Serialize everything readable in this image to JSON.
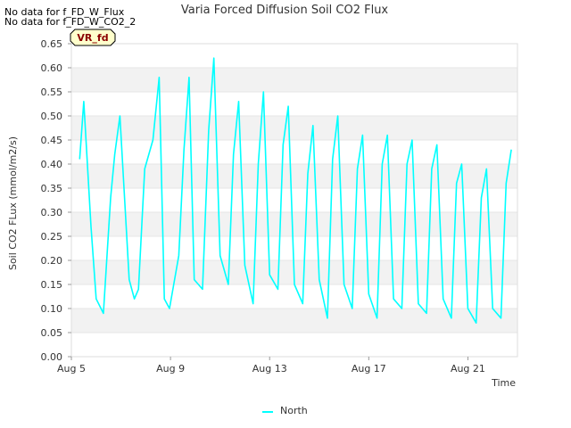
{
  "notes": [
    "No data for f_FD_W_Flux",
    "No data for f_FD_W_CO2_2"
  ],
  "badge": "VR_fd",
  "chart_data": {
    "type": "line",
    "title": "Varia Forced Diffusion Soil CO2 Flux",
    "xlabel": "Time",
    "ylabel": "Soil CO2 FLux (mmol/m2/s)",
    "ylim": [
      0,
      0.65
    ],
    "yticks": [
      "0.00",
      "0.05",
      "0.10",
      "0.15",
      "0.20",
      "0.25",
      "0.30",
      "0.35",
      "0.40",
      "0.45",
      "0.50",
      "0.55",
      "0.60",
      "0.65"
    ],
    "xlim": [
      "2023-08-05",
      "2023-08-23"
    ],
    "xticks": [
      {
        "date": "2023-08-05",
        "label": "Aug 5"
      },
      {
        "date": "2023-08-09",
        "label": "Aug 9"
      },
      {
        "date": "2023-08-13",
        "label": "Aug 13"
      },
      {
        "date": "2023-08-17",
        "label": "Aug 17"
      },
      {
        "date": "2023-08-21",
        "label": "Aug 21"
      }
    ],
    "grid": "horizontal bands",
    "legend": "bottom-center",
    "colors": {
      "North": "#00ffff"
    },
    "series": [
      {
        "name": "North",
        "x": [
          "2023-08-05 08:00",
          "2023-08-05 12:00",
          "2023-08-05 19:00",
          "2023-08-06 00:00",
          "2023-08-06 07:00",
          "2023-08-06 14:00",
          "2023-08-06 18:00",
          "2023-08-06 23:00",
          "2023-08-07 08:00",
          "2023-08-07 13:00",
          "2023-08-07 17:00",
          "2023-08-07 23:00",
          "2023-08-08 07:00",
          "2023-08-08 13:00",
          "2023-08-08 18:00",
          "2023-08-08 23:00",
          "2023-08-09 08:00",
          "2023-08-09 13:00",
          "2023-08-09 18:00",
          "2023-08-09 23:00",
          "2023-08-10 07:00",
          "2023-08-10 13:00",
          "2023-08-10 18:00",
          "2023-08-11 00:00",
          "2023-08-11 08:00",
          "2023-08-11 13:00",
          "2023-08-11 18:00",
          "2023-08-12 00:00",
          "2023-08-12 08:00",
          "2023-08-12 13:00",
          "2023-08-12 18:00",
          "2023-08-13 00:00",
          "2023-08-13 08:00",
          "2023-08-13 13:00",
          "2023-08-13 18:00",
          "2023-08-14 00:00",
          "2023-08-14 08:00",
          "2023-08-14 13:00",
          "2023-08-14 18:00",
          "2023-08-15 00:00",
          "2023-08-15 08:00",
          "2023-08-15 13:00",
          "2023-08-15 18:00",
          "2023-08-16 00:00",
          "2023-08-16 08:00",
          "2023-08-16 13:00",
          "2023-08-16 18:00",
          "2023-08-17 00:00",
          "2023-08-17 08:00",
          "2023-08-17 13:00",
          "2023-08-17 18:00",
          "2023-08-18 00:00",
          "2023-08-18 08:00",
          "2023-08-18 13:00",
          "2023-08-18 18:00",
          "2023-08-19 00:00",
          "2023-08-19 08:00",
          "2023-08-19 13:00",
          "2023-08-19 18:00",
          "2023-08-20 00:00",
          "2023-08-20 08:00",
          "2023-08-20 13:00",
          "2023-08-20 18:00",
          "2023-08-21 00:00",
          "2023-08-21 08:00",
          "2023-08-21 13:00",
          "2023-08-21 18:00",
          "2023-08-22 00:00",
          "2023-08-22 08:00",
          "2023-08-22 13:00",
          "2023-08-22 18:00"
        ],
        "values": [
          0.41,
          0.53,
          0.27,
          0.12,
          0.09,
          0.33,
          0.42,
          0.5,
          0.16,
          0.12,
          0.14,
          0.39,
          0.45,
          0.58,
          0.12,
          0.1,
          0.21,
          0.43,
          0.58,
          0.16,
          0.14,
          0.47,
          0.62,
          0.21,
          0.15,
          0.42,
          0.53,
          0.19,
          0.11,
          0.4,
          0.55,
          0.17,
          0.14,
          0.44,
          0.52,
          0.15,
          0.11,
          0.38,
          0.48,
          0.16,
          0.08,
          0.41,
          0.5,
          0.15,
          0.1,
          0.39,
          0.46,
          0.13,
          0.08,
          0.4,
          0.46,
          0.12,
          0.1,
          0.4,
          0.45,
          0.11,
          0.09,
          0.39,
          0.44,
          0.12,
          0.08,
          0.36,
          0.4,
          0.1,
          0.07,
          0.33,
          0.39,
          0.1,
          0.08,
          0.36,
          0.43
        ]
      }
    ]
  }
}
